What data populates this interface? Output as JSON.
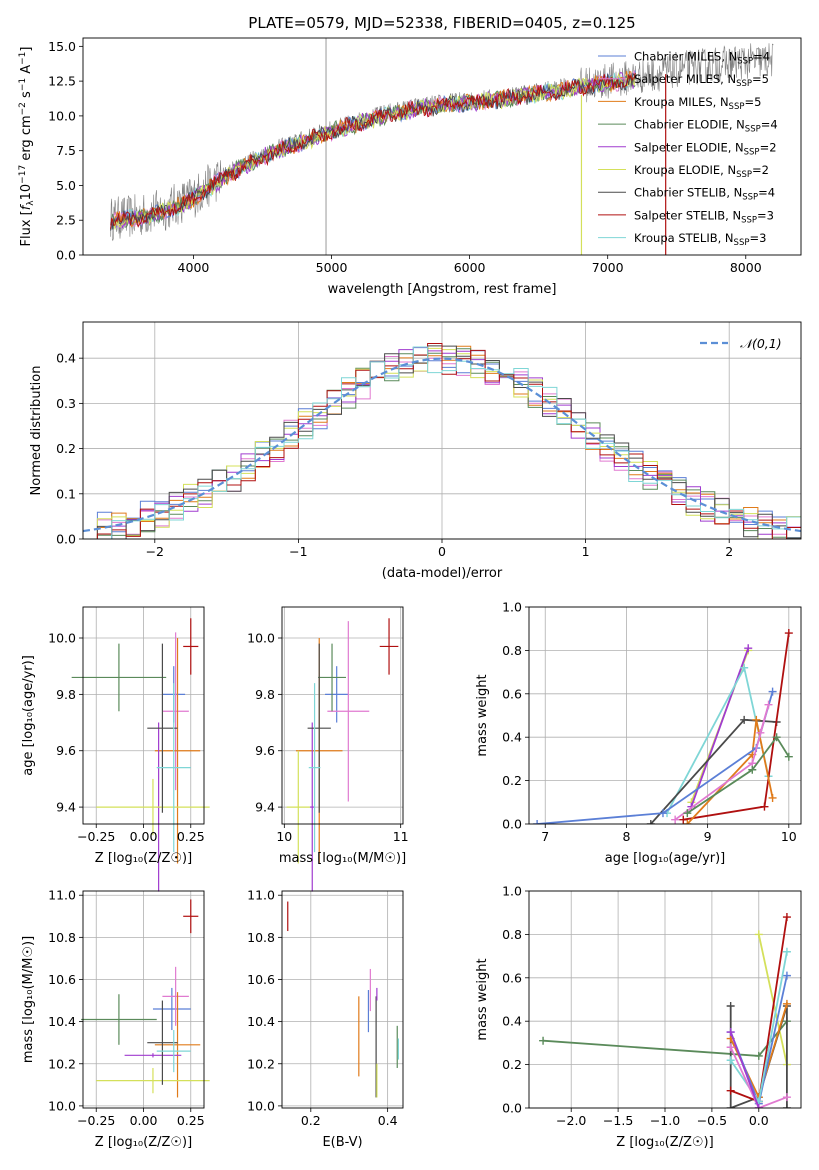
{
  "colors": {
    "chabrier_miles": "#5b7fd6",
    "salpeter_miles": "#e07ad0",
    "kroupa_miles": "#e07b1a",
    "chabrier_elodie": "#5a8a5a",
    "salpeter_elodie": "#a03ccf",
    "kroupa_elodie": "#d4e05a",
    "chabrier_stelib": "#4a4a4a",
    "salpeter_stelib": "#b01010",
    "kroupa_stelib": "#7fd6d6",
    "normal_curve": "#5b8fd6",
    "observed_spectrum": "#808080",
    "grid": "#b0b0b0"
  },
  "chart_data": [
    {
      "panel": "spectrum",
      "type": "line",
      "title": "PLATE=0579, MJD=52338, FIBERID=0405, z=0.125",
      "xlabel": "wavelength [Angstrom, rest frame]",
      "ylabel_parts": [
        "Flux [",
        "f",
        "λ",
        "10",
        "−17",
        " erg cm",
        "−2",
        " s",
        "−1",
        " A",
        "−1",
        "]"
      ],
      "xlim": [
        3200,
        8400
      ],
      "ylim": [
        0,
        15.6
      ],
      "xticks": [
        4000,
        5000,
        6000,
        7000,
        8000
      ],
      "yticks": [
        0.0,
        2.5,
        5.0,
        7.5,
        10.0,
        12.5,
        15.0
      ],
      "ytick_labels": [
        "0.0",
        "2.5",
        "5.0",
        "7.5",
        "10.0",
        "12.5",
        "15.0"
      ],
      "grid": false,
      "legend_position": "top-right",
      "legend": [
        {
          "key": "chabrier_miles",
          "label": "Chabrier MILES, N",
          "sub": "SSP",
          "tail": "=4"
        },
        {
          "key": "salpeter_miles",
          "label": "Salpeter MILES, N",
          "sub": "SSP",
          "tail": "=5"
        },
        {
          "key": "kroupa_miles",
          "label": "Kroupa MILES, N",
          "sub": "SSP",
          "tail": "=5"
        },
        {
          "key": "chabrier_elodie",
          "label": "Chabrier ELODIE, N",
          "sub": "SSP",
          "tail": "=4"
        },
        {
          "key": "salpeter_elodie",
          "label": "Salpeter ELODIE, N",
          "sub": "SSP",
          "tail": "=2"
        },
        {
          "key": "kroupa_elodie",
          "label": "Kroupa ELODIE, N",
          "sub": "SSP",
          "tail": "=2"
        },
        {
          "key": "chabrier_stelib",
          "label": "Chabrier STELIB, N",
          "sub": "SSP",
          "tail": "=4"
        },
        {
          "key": "salpeter_stelib",
          "label": "Salpeter STELIB, N",
          "sub": "SSP",
          "tail": "=3"
        },
        {
          "key": "kroupa_stelib",
          "label": "Kroupa STELIB, N",
          "sub": "SSP",
          "tail": "=3"
        }
      ],
      "continuum": {
        "x": [
          3400,
          3600,
          3800,
          4000,
          4200,
          4400,
          4600,
          4800,
          5000,
          5200,
          5400,
          5600,
          5800,
          6000,
          6200,
          6400,
          6600,
          6800,
          7000,
          7200,
          7400,
          7600,
          7800,
          8000,
          8200
        ],
        "y": [
          2.6,
          2.8,
          3.3,
          4.2,
          5.6,
          6.7,
          7.6,
          8.3,
          9.0,
          9.6,
          10.2,
          10.6,
          10.9,
          11.1,
          11.3,
          11.6,
          11.9,
          12.2,
          12.5,
          12.8,
          13.1,
          13.5,
          13.7,
          13.9,
          14.0
        ]
      },
      "model_x_range": [
        3400,
        7200
      ]
    },
    {
      "panel": "residuals",
      "type": "bar",
      "title": "",
      "xlabel": "(data-model)/error",
      "ylabel": "Normed distribution",
      "xlim": [
        -2.5,
        2.5
      ],
      "ylim": [
        0,
        0.48
      ],
      "xticks": [
        -2,
        -1,
        0,
        1,
        2
      ],
      "xtick_labels": [
        "−2",
        "−1",
        "0",
        "1",
        "2"
      ],
      "yticks": [
        0.0,
        0.1,
        0.2,
        0.3,
        0.4
      ],
      "ytick_labels": [
        "0.0",
        "0.1",
        "0.2",
        "0.3",
        "0.4"
      ],
      "grid": true,
      "legend_position": "top-right",
      "legend_label": "𝒩(0,1)",
      "bin_width": 0.1,
      "bin_start": -2.5,
      "series_order": [
        "chabrier_miles",
        "salpeter_miles",
        "kroupa_miles",
        "chabrier_elodie",
        "salpeter_elodie",
        "kroupa_elodie",
        "chabrier_stelib",
        "salpeter_stelib",
        "kroupa_stelib"
      ]
    },
    {
      "panel": "age_vs_Z",
      "type": "scatter",
      "xlabel": "Z [log₁₀(Z/Z☉)]",
      "ylabel": "age  [log₁₀(age/yr)]",
      "xlim": [
        -0.32,
        0.32
      ],
      "ylim": [
        9.34,
        10.11
      ],
      "xticks": [
        -0.25,
        0.0,
        0.25
      ],
      "xtick_labels": [
        "−0.25",
        "0.00",
        "0.25"
      ],
      "yticks": [
        9.4,
        9.6,
        9.8,
        10.0
      ],
      "ytick_labels": [
        "9.4",
        "9.6",
        "9.8",
        "10.0"
      ],
      "grid": true,
      "points": [
        {
          "key": "chabrier_miles",
          "x": 0.16,
          "xerr": 0.06,
          "y": 9.8,
          "yerr": 0.1
        },
        {
          "key": "salpeter_miles",
          "x": 0.17,
          "xerr": 0.07,
          "y": 9.74,
          "yerr": 0.28
        },
        {
          "key": "kroupa_miles",
          "x": 0.18,
          "xerr": 0.12,
          "y": 9.6,
          "yerr": 0.4
        },
        {
          "key": "chabrier_elodie",
          "x": -0.13,
          "xerr": 0.25,
          "y": 9.86,
          "yerr": 0.12
        },
        {
          "key": "salpeter_elodie",
          "x": 0.08,
          "xerr": 0.01,
          "y": 9.4,
          "yerr": 0.3
        },
        {
          "key": "kroupa_elodie",
          "x": 0.05,
          "xerr": 0.3,
          "y": 9.4,
          "yerr": 0.1
        },
        {
          "key": "chabrier_stelib",
          "x": 0.1,
          "xerr": 0.08,
          "y": 9.68,
          "yerr": 0.3
        },
        {
          "key": "salpeter_stelib",
          "x": 0.25,
          "xerr": 0.04,
          "y": 9.97,
          "yerr": 0.1
        },
        {
          "key": "kroupa_stelib",
          "x": 0.16,
          "xerr": 0.09,
          "y": 9.54,
          "yerr": 0.3
        }
      ]
    },
    {
      "panel": "age_vs_mass",
      "type": "scatter",
      "xlabel": "mass [log₁₀(M/M☉)]",
      "ylabel": "",
      "xlim": [
        9.98,
        11.02
      ],
      "ylim": [
        9.34,
        10.11
      ],
      "xticks": [
        10,
        11
      ],
      "xtick_labels": [
        "10",
        "11"
      ],
      "yticks": [
        9.4,
        9.6,
        9.8,
        10.0
      ],
      "ytick_labels": [
        "9.4",
        "9.6",
        "9.8",
        "10.0"
      ],
      "grid": true,
      "points": [
        {
          "key": "chabrier_miles",
          "x": 10.45,
          "xerr": 0.1,
          "y": 9.8,
          "yerr": 0.1
        },
        {
          "key": "salpeter_miles",
          "x": 10.55,
          "xerr": 0.18,
          "y": 9.74,
          "yerr": 0.32
        },
        {
          "key": "kroupa_miles",
          "x": 10.3,
          "xerr": 0.2,
          "y": 9.6,
          "yerr": 0.4
        },
        {
          "key": "chabrier_elodie",
          "x": 10.41,
          "xerr": 0.12,
          "y": 9.86,
          "yerr": 0.12
        },
        {
          "key": "salpeter_elodie",
          "x": 10.24,
          "xerr": 0.02,
          "y": 9.4,
          "yerr": 0.3
        },
        {
          "key": "kroupa_elodie",
          "x": 10.12,
          "xerr": 0.1,
          "y": 9.4,
          "yerr": 0.2
        },
        {
          "key": "chabrier_stelib",
          "x": 10.3,
          "xerr": 0.1,
          "y": 9.68,
          "yerr": 0.3
        },
        {
          "key": "salpeter_stelib",
          "x": 10.9,
          "xerr": 0.08,
          "y": 9.97,
          "yerr": 0.1
        },
        {
          "key": "kroupa_stelib",
          "x": 10.26,
          "xerr": 0.05,
          "y": 9.54,
          "yerr": 0.3
        }
      ]
    },
    {
      "panel": "weight_vs_age",
      "type": "line",
      "xlabel": "age  [log₁₀(age/yr)]",
      "ylabel": "mass weight",
      "xlim": [
        6.8,
        10.15
      ],
      "ylim": [
        0,
        1.0
      ],
      "xticks": [
        7,
        8,
        9,
        10
      ],
      "xtick_labels": [
        "7",
        "8",
        "9",
        "10"
      ],
      "yticks": [
        0.0,
        0.2,
        0.4,
        0.6,
        0.8,
        1.0
      ],
      "ytick_labels": [
        "0.0",
        "0.2",
        "0.4",
        "0.6",
        "0.8",
        "1.0"
      ],
      "grid": true,
      "series": [
        {
          "key": "kroupa_elodie",
          "x": [
            8.8,
            9.5
          ],
          "y": [
            0.1,
            0.8
          ]
        },
        {
          "key": "salpeter_elodie",
          "x": [
            8.8,
            9.5
          ],
          "y": [
            0.08,
            0.81
          ]
        },
        {
          "key": "kroupa_stelib",
          "x": [
            8.5,
            9.45,
            9.75
          ],
          "y": [
            0.05,
            0.72,
            0.22
          ]
        },
        {
          "key": "chabrier_stelib",
          "x": [
            8.3,
            9.45,
            9.85
          ],
          "y": [
            0.0,
            0.48,
            0.47
          ]
        },
        {
          "key": "salpeter_stelib",
          "x": [
            8.7,
            9.7,
            10.0
          ],
          "y": [
            0.02,
            0.08,
            0.88
          ]
        },
        {
          "key": "kroupa_miles",
          "x": [
            8.75,
            9.55,
            9.6,
            9.8
          ],
          "y": [
            0.0,
            0.32,
            0.48,
            0.12
          ]
        },
        {
          "key": "chabrier_miles",
          "x": [
            6.9,
            8.45,
            9.6,
            9.8
          ],
          "y": [
            0.0,
            0.05,
            0.35,
            0.61
          ]
        },
        {
          "key": "salpeter_miles",
          "x": [
            8.6,
            9.55,
            9.75,
            9.65
          ],
          "y": [
            0.02,
            0.28,
            0.55,
            0.42
          ]
        },
        {
          "key": "chabrier_elodie",
          "x": [
            8.75,
            9.55,
            9.85,
            10.0
          ],
          "y": [
            0.05,
            0.25,
            0.4,
            0.31
          ]
        }
      ]
    },
    {
      "panel": "mass_vs_Z",
      "type": "scatter",
      "xlabel": "Z [log₁₀(Z/Z☉)]",
      "ylabel": "mass [log₁₀(M/M☉)]",
      "xlim": [
        -0.32,
        0.32
      ],
      "ylim": [
        9.99,
        11.02
      ],
      "xticks": [
        -0.25,
        0.0,
        0.25
      ],
      "xtick_labels": [
        "−0.25",
        "0.00",
        "0.25"
      ],
      "yticks": [
        10.0,
        10.2,
        10.4,
        10.6,
        10.8,
        11.0
      ],
      "ytick_labels": [
        "10.0",
        "10.2",
        "10.4",
        "10.6",
        "10.8",
        "11.0"
      ],
      "grid": true,
      "points": [
        {
          "key": "chabrier_miles",
          "x": 0.15,
          "xerr": 0.1,
          "y": 10.46,
          "yerr": 0.1
        },
        {
          "key": "salpeter_miles",
          "x": 0.17,
          "xerr": 0.07,
          "y": 10.52,
          "yerr": 0.14
        },
        {
          "key": "kroupa_miles",
          "x": 0.18,
          "xerr": 0.12,
          "y": 10.29,
          "yerr": 0.25
        },
        {
          "key": "chabrier_elodie",
          "x": -0.13,
          "xerr": 0.2,
          "y": 10.41,
          "yerr": 0.12
        },
        {
          "key": "salpeter_elodie",
          "x": 0.05,
          "xerr": 0.15,
          "y": 10.24,
          "yerr": 0.01
        },
        {
          "key": "kroupa_elodie",
          "x": 0.05,
          "xerr": 0.3,
          "y": 10.12,
          "yerr": 0.06
        },
        {
          "key": "chabrier_stelib",
          "x": 0.1,
          "xerr": 0.08,
          "y": 10.3,
          "yerr": 0.2
        },
        {
          "key": "salpeter_stelib",
          "x": 0.25,
          "xerr": 0.04,
          "y": 10.9,
          "yerr": 0.08
        },
        {
          "key": "kroupa_stelib",
          "x": 0.16,
          "xerr": 0.09,
          "y": 10.26,
          "yerr": 0.1
        }
      ]
    },
    {
      "panel": "mass_vs_EBV",
      "type": "scatter",
      "xlabel": "E(B-V)",
      "ylabel": "",
      "xlim": [
        0.125,
        0.44
      ],
      "ylim": [
        9.99,
        11.02
      ],
      "xticks": [
        0.2,
        0.4
      ],
      "xtick_labels": [
        "0.2",
        "0.4"
      ],
      "yticks": [
        10.0,
        10.2,
        10.4,
        10.6,
        10.8,
        11.0
      ],
      "ytick_labels": [
        "10.0",
        "10.2",
        "10.4",
        "10.6",
        "10.8",
        "11.0"
      ],
      "grid": true,
      "points": [
        {
          "key": "salpeter_stelib",
          "x": 0.14,
          "xerr": 0,
          "y": 10.9,
          "yerr": 0.07
        },
        {
          "key": "kroupa_miles",
          "x": 0.325,
          "xerr": 0,
          "y": 10.33,
          "yerr": 0.19
        },
        {
          "key": "salpeter_miles",
          "x": 0.355,
          "xerr": 0,
          "y": 10.55,
          "yerr": 0.1
        },
        {
          "key": "chabrier_miles",
          "x": 0.35,
          "xerr": 0,
          "y": 10.45,
          "yerr": 0.1
        },
        {
          "key": "chabrier_stelib",
          "x": 0.37,
          "xerr": 0,
          "y": 10.28,
          "yerr": 0.24
        },
        {
          "key": "kroupa_elodie",
          "x": 0.372,
          "xerr": 0,
          "y": 10.12,
          "yerr": 0.08
        },
        {
          "key": "salpeter_elodie",
          "x": 0.372,
          "xerr": 0,
          "y": 10.53,
          "yerr": 0.03
        },
        {
          "key": "chabrier_elodie",
          "x": 0.425,
          "xerr": 0,
          "y": 10.28,
          "yerr": 0.1
        },
        {
          "key": "kroupa_stelib",
          "x": 0.428,
          "xerr": 0,
          "y": 10.27,
          "yerr": 0.05
        }
      ]
    },
    {
      "panel": "weight_vs_Z",
      "type": "line",
      "xlabel": "Z [log₁₀(Z/Z☉)]",
      "ylabel": "mass weight",
      "xlim": [
        -2.45,
        0.45
      ],
      "ylim": [
        0,
        1.0
      ],
      "xticks": [
        -2.0,
        -1.5,
        -1.0,
        -0.5,
        0.0
      ],
      "xtick_labels": [
        "−2.0",
        "−1.5",
        "−1.0",
        "−0.5",
        "0.0"
      ],
      "yticks": [
        0.0,
        0.2,
        0.4,
        0.6,
        0.8,
        1.0
      ],
      "ytick_labels": [
        "0.0",
        "0.2",
        "0.4",
        "0.6",
        "0.8",
        "1.0"
      ],
      "grid": true,
      "series": [
        {
          "key": "chabrier_elodie",
          "x": [
            -2.3,
            0.0,
            0.3
          ],
          "y": [
            0.31,
            0.24,
            0.4
          ]
        },
        {
          "key": "kroupa_elodie",
          "x": [
            0.0,
            0.3
          ],
          "y": [
            0.8,
            0.2
          ]
        },
        {
          "key": "chabrier_stelib",
          "x": [
            -0.3,
            -0.3,
            0.0,
            0.3,
            0.3
          ],
          "y": [
            0.47,
            0.0,
            0.05,
            0.47,
            0.0
          ]
        },
        {
          "key": "salpeter_stelib",
          "x": [
            -0.3,
            0.0,
            0.3
          ],
          "y": [
            0.08,
            0.03,
            0.88
          ]
        },
        {
          "key": "kroupa_miles",
          "x": [
            -0.3,
            0.0,
            0.3
          ],
          "y": [
            0.32,
            0.05,
            0.48
          ]
        },
        {
          "key": "chabrier_miles",
          "x": [
            -0.3,
            0.0,
            0.3
          ],
          "y": [
            0.35,
            0.02,
            0.61
          ]
        },
        {
          "key": "kroupa_stelib",
          "x": [
            -0.3,
            0.0,
            0.3
          ],
          "y": [
            0.22,
            0.03,
            0.72
          ]
        },
        {
          "key": "salpeter_miles",
          "x": [
            -0.3,
            0.0,
            0.3
          ],
          "y": [
            0.28,
            0.0,
            0.05
          ]
        },
        {
          "key": "salpeter_elodie",
          "x": [
            -0.3,
            0.0
          ],
          "y": [
            0.35,
            0.0
          ]
        }
      ]
    }
  ]
}
